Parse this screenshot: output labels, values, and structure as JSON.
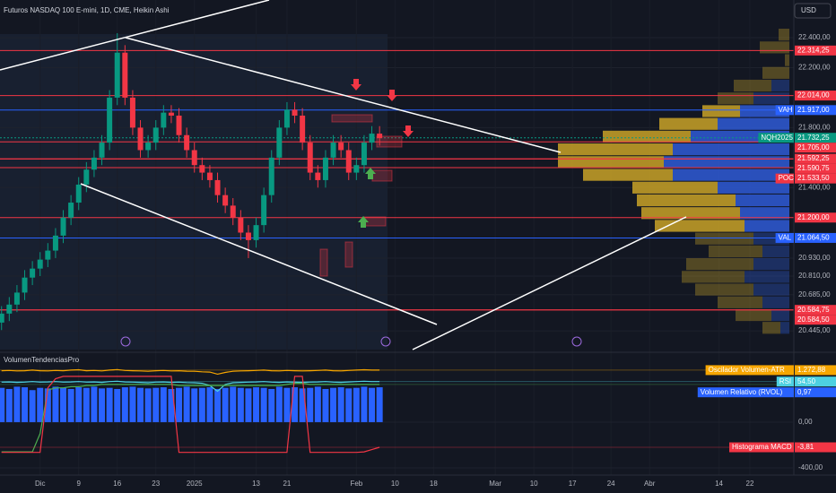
{
  "header": {
    "symbol": "Futuros NASDAQ 100 E-mini, 1D, CME, Heikin Ashi",
    "currency": "USD"
  },
  "chart_data": [
    {
      "type": "candlestick",
      "up_color": "#089981",
      "down_color": "#f23645",
      "xlim": [
        -0.2,
        102.7
      ],
      "ylim": [
        20320,
        22651
      ],
      "yticks": [
        {
          "value": 22400,
          "label": "22.400,00"
        },
        {
          "value": 22200,
          "label": "22.200,00"
        },
        {
          "value": 21800,
          "label": "21.800,00"
        },
        {
          "value": 21400,
          "label": "21.400,00"
        },
        {
          "value": 20930,
          "label": "20.930,00"
        },
        {
          "value": 20810,
          "label": "20.810,00"
        },
        {
          "value": 20685,
          "label": "20.685,00"
        },
        {
          "value": 20445,
          "label": "20.445,00"
        }
      ],
      "xticks": [
        {
          "value": 5,
          "label": "Dic"
        },
        {
          "value": 10,
          "label": "9"
        },
        {
          "value": 15,
          "label": "16"
        },
        {
          "value": 20,
          "label": "23"
        },
        {
          "value": 25,
          "label": "2025"
        },
        {
          "value": 33,
          "label": "13"
        },
        {
          "value": 37,
          "label": "21"
        },
        {
          "value": 46,
          "label": "Feb"
        },
        {
          "value": 51,
          "label": "10"
        },
        {
          "value": 56,
          "label": "18"
        },
        {
          "value": 64,
          "label": "Mar"
        },
        {
          "value": 69,
          "label": "10"
        },
        {
          "value": 74,
          "label": "17"
        },
        {
          "value": 79,
          "label": "24"
        },
        {
          "value": 84,
          "label": "Abr"
        },
        {
          "value": 93,
          "label": "14"
        },
        {
          "value": 97,
          "label": "22"
        }
      ],
      "open": [
        20500,
        20560,
        20620,
        20700,
        20800,
        20860,
        20920,
        20980,
        21080,
        21200,
        21300,
        21420,
        21520,
        21600,
        21700,
        22000,
        22300,
        22000,
        21800,
        21650,
        21700,
        21800,
        21900,
        21880,
        21750,
        21650,
        21550,
        21500,
        21450,
        21350,
        21280,
        21200,
        21100,
        21050,
        21150,
        21350,
        21600,
        21800,
        21920,
        21880,
        21700,
        21500,
        21450,
        21600,
        21700,
        21650,
        21500,
        21550,
        21700,
        21760
      ],
      "high": [
        20610,
        20670,
        20750,
        20850,
        20910,
        20970,
        21030,
        21130,
        21250,
        21350,
        21470,
        21570,
        21650,
        21750,
        22050,
        22430,
        22350,
        22050,
        21850,
        21750,
        21850,
        21950,
        21950,
        21930,
        21800,
        21700,
        21600,
        21550,
        21500,
        21400,
        21330,
        21250,
        21150,
        21200,
        21400,
        21650,
        21850,
        21970,
        21970,
        21930,
        21750,
        21550,
        21650,
        21750,
        21750,
        21700,
        21600,
        21750,
        21810,
        21810
      ],
      "low": [
        20450,
        20510,
        20570,
        20650,
        20750,
        20810,
        20870,
        20930,
        21030,
        21150,
        21250,
        21370,
        21470,
        21550,
        21650,
        21950,
        21950,
        21750,
        21600,
        21600,
        21650,
        21750,
        21830,
        21700,
        21600,
        21500,
        21450,
        21400,
        21300,
        21230,
        21150,
        21050,
        20930,
        21000,
        21100,
        21300,
        21550,
        21750,
        21830,
        21650,
        21450,
        21400,
        21400,
        21550,
        21600,
        21450,
        21450,
        21500,
        21650,
        21680
      ],
      "close": [
        20560,
        20620,
        20700,
        20800,
        20860,
        20920,
        20980,
        21080,
        21200,
        21300,
        21420,
        21520,
        21600,
        21700,
        22000,
        22300,
        22000,
        21800,
        21650,
        21700,
        21800,
        21900,
        21880,
        21750,
        21650,
        21550,
        21500,
        21450,
        21350,
        21280,
        21200,
        21100,
        21050,
        21150,
        21350,
        21600,
        21800,
        21920,
        21880,
        21700,
        21500,
        21450,
        21600,
        21700,
        21650,
        21500,
        21550,
        21700,
        21760,
        21730
      ],
      "levels": [
        {
          "value": 22314.25,
          "label": "22.314,25",
          "color": "#f23645"
        },
        {
          "value": 22014,
          "label": "22.014,00",
          "color": "#f23645"
        },
        {
          "value": 21917,
          "label": "21.917,00",
          "color": "#2962ff",
          "name": "VAH"
        },
        {
          "value": 21732.25,
          "label": "21.732,25",
          "color": "#089981",
          "name": "NQH2025"
        },
        {
          "value": 21705,
          "label": "21.705,00",
          "color": "#f23645"
        },
        {
          "value": 21592.25,
          "label": "21.592,25",
          "color": "#f23645"
        },
        {
          "value": 21590.75,
          "label": "21.590,75",
          "color": "#f23645"
        },
        {
          "value": 21533.5,
          "label": "21.533,50",
          "color": "#f23645",
          "name": "POC"
        },
        {
          "value": 21200,
          "label": "21.200,00",
          "color": "#f23645"
        },
        {
          "value": 21064.5,
          "label": "21.064,50",
          "color": "#2962ff",
          "name": "VAL"
        },
        {
          "value": 20584.75,
          "label": "20.584,75",
          "color": "#f23645"
        },
        {
          "value": 20584.5,
          "label": "20.584,50",
          "color": "#f23645"
        }
      ],
      "volume_profile": {
        "buy_color": "#c9a227",
        "sell_color": "#2f5bd6",
        "prices": [
          22420,
          22335,
          22250,
          22165,
          22080,
          21995,
          21910,
          21825,
          21740,
          21655,
          21570,
          21485,
          21400,
          21315,
          21230,
          21145,
          21060,
          20975,
          20890,
          20805,
          20720,
          20635,
          20550,
          20465
        ],
        "buy": [
          12,
          33,
          5,
          30,
          42,
          40,
          42,
          65,
          98,
          128,
          118,
          100,
          95,
          110,
          110,
          100,
          65,
          60,
          75,
          70,
          65,
          50,
          40,
          20
        ],
        "sell": [
          0,
          0,
          0,
          0,
          20,
          40,
          55,
          80,
          110,
          130,
          140,
          130,
          80,
          60,
          55,
          50,
          40,
          30,
          40,
          50,
          40,
          30,
          20,
          10
        ]
      }
    },
    {
      "type": "indicator",
      "title": "VolumenTendenciasPro",
      "ylim": [
        -463,
        572
      ],
      "yticks": [
        {
          "value": 0,
          "label": "0,00"
        },
        {
          "value": -400,
          "label": "-400,00"
        }
      ],
      "bars": {
        "color": "#2962ff",
        "values": [
          300,
          290,
          310,
          305,
          280,
          300,
          295,
          310,
          300,
          290,
          305,
          300,
          310,
          295,
          300,
          290,
          305,
          310,
          300,
          295,
          300,
          305,
          290,
          300,
          310,
          295,
          300,
          305,
          290,
          300,
          310,
          300,
          295,
          305,
          300,
          290,
          310,
          300,
          305,
          295,
          300,
          310,
          290,
          300,
          305,
          295,
          300,
          310,
          300,
          305
        ]
      },
      "series": [
        {
          "color": "#f7a600",
          "values": [
            450,
            452,
            448,
            450,
            455,
            450,
            448,
            452,
            450,
            455,
            458,
            450,
            452,
            448,
            455,
            460,
            452,
            450,
            448,
            445,
            450,
            452,
            448,
            450,
            446,
            445,
            440,
            438,
            420,
            435,
            445,
            448,
            450,
            452,
            455,
            450,
            448,
            452,
            450,
            448,
            450,
            452,
            455,
            450,
            448,
            452,
            455,
            458,
            455,
            455
          ]
        },
        {
          "color": "#4dd0e1",
          "values": [
            350,
            352,
            348,
            350,
            355,
            350,
            352,
            355,
            350,
            352,
            355,
            350,
            352,
            348,
            355,
            358,
            352,
            350,
            348,
            345,
            350,
            352,
            348,
            350,
            346,
            345,
            340,
            320,
            270,
            330,
            345,
            348,
            350,
            352,
            355,
            350,
            348,
            352,
            350,
            348,
            350,
            352,
            355,
            350,
            348,
            352,
            355,
            358,
            355,
            355
          ]
        },
        {
          "color": "#4caf50",
          "values": [
            -260,
            -260,
            -260,
            -260,
            -260,
            -100,
            280,
            300,
            300,
            310,
            310,
            320,
            320,
            330,
            330,
            330,
            330,
            330,
            330,
            330,
            330,
            330,
            330,
            320,
            320,
            320,
            320,
            320,
            320,
            320,
            320,
            320,
            320,
            320,
            320,
            320,
            320,
            330,
            340,
            340,
            330,
            330,
            330,
            330,
            330,
            330,
            330,
            330,
            330,
            330
          ]
        },
        {
          "color": "#f23645",
          "values": [
            -265,
            -265,
            -265,
            -265,
            -265,
            -265,
            300,
            380,
            400,
            400,
            400,
            400,
            400,
            400,
            400,
            400,
            400,
            400,
            400,
            400,
            400,
            400,
            400,
            -265,
            -265,
            -265,
            -265,
            -265,
            -265,
            -265,
            -265,
            -265,
            -265,
            -265,
            -265,
            -265,
            -265,
            -265,
            400,
            400,
            -265,
            -265,
            -265,
            -265,
            -265,
            -265,
            -265,
            -260,
            -240,
            -220
          ]
        }
      ],
      "tags": [
        {
          "name": "Oscilador Volumen-ATR",
          "value_label": "1.272,88",
          "color": "#f7a600"
        },
        {
          "name": "RSI",
          "value_label": "54,50",
          "color": "#4dd0e1"
        },
        {
          "name": "Volumen Relativo (RVOL)",
          "value_label": "0,97",
          "color": "#2962ff"
        },
        {
          "name": "Histograma MACD",
          "value_label": "-3,81",
          "color": "#f23645"
        }
      ]
    }
  ]
}
